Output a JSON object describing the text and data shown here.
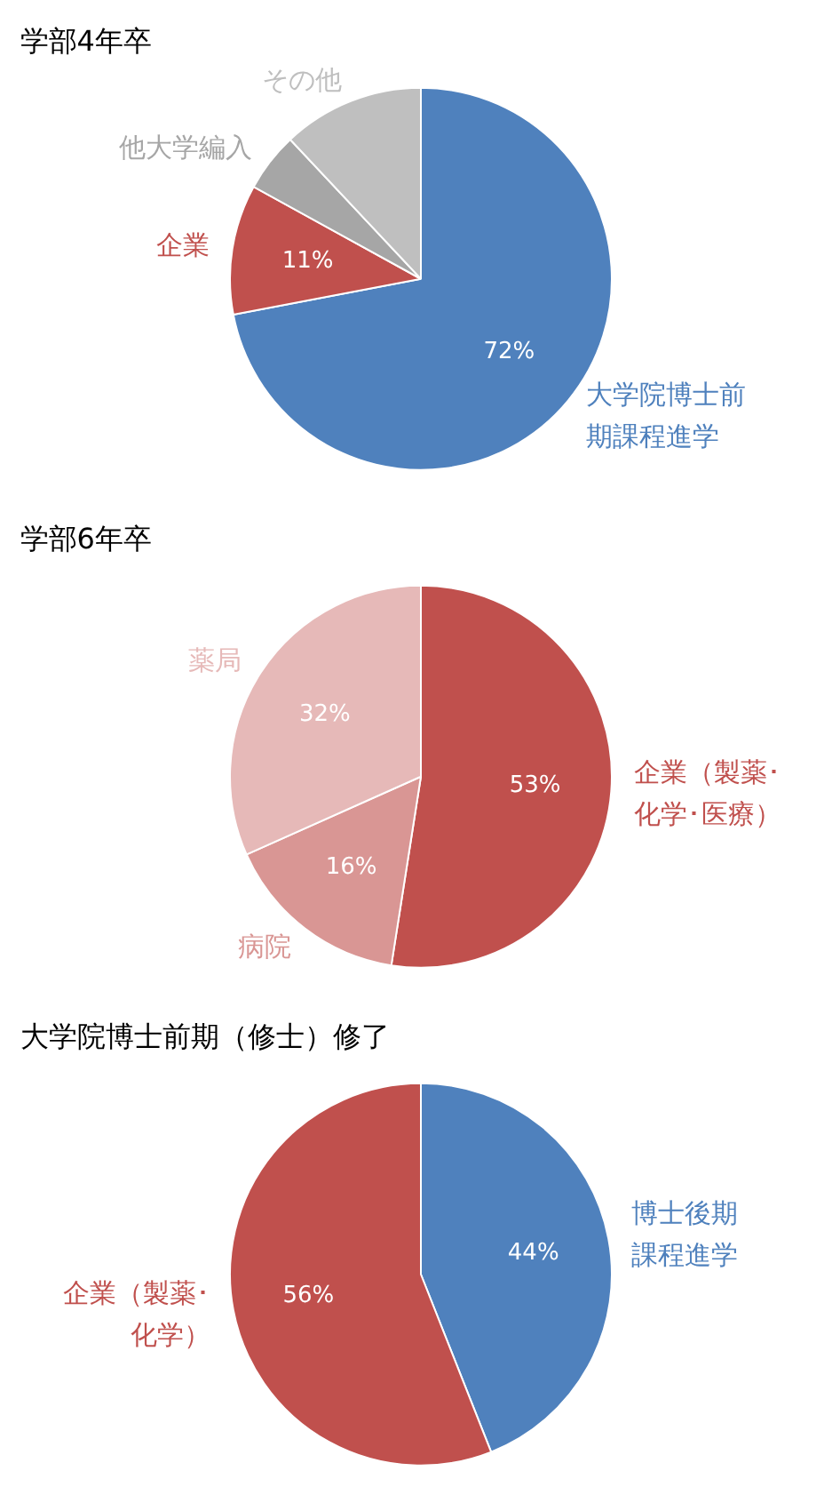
{
  "chart_data": [
    {
      "type": "pie",
      "title": "学部4年卒",
      "categories": [
        "大学院博士前期課程進学",
        "企業",
        "他大学編入",
        "その他"
      ],
      "values": [
        72,
        11,
        5,
        12
      ],
      "colors": [
        "#4f81bd",
        "#c0504d",
        "#a6a6a6",
        "#bfbfbf"
      ],
      "value_labels": [
        "72%",
        "11%",
        null,
        null
      ],
      "legend": false
    },
    {
      "type": "pie",
      "title": "学部6年卒",
      "categories": [
        "企業（製薬･化学･医療）",
        "病院",
        "薬局"
      ],
      "values": [
        53,
        16,
        32
      ],
      "colors": [
        "#c0504d",
        "#d99694",
        "#e6b9b8"
      ],
      "value_labels": [
        "53%",
        "16%",
        "32%"
      ],
      "legend": false
    },
    {
      "type": "pie",
      "title": "大学院博士前期（修士）修了",
      "categories": [
        "博士後期課程進学",
        "企業（製薬･化学）"
      ],
      "values": [
        44,
        56
      ],
      "colors": [
        "#4f81bd",
        "#c0504d"
      ],
      "value_labels": [
        "44%",
        "56%"
      ],
      "legend": false
    }
  ]
}
